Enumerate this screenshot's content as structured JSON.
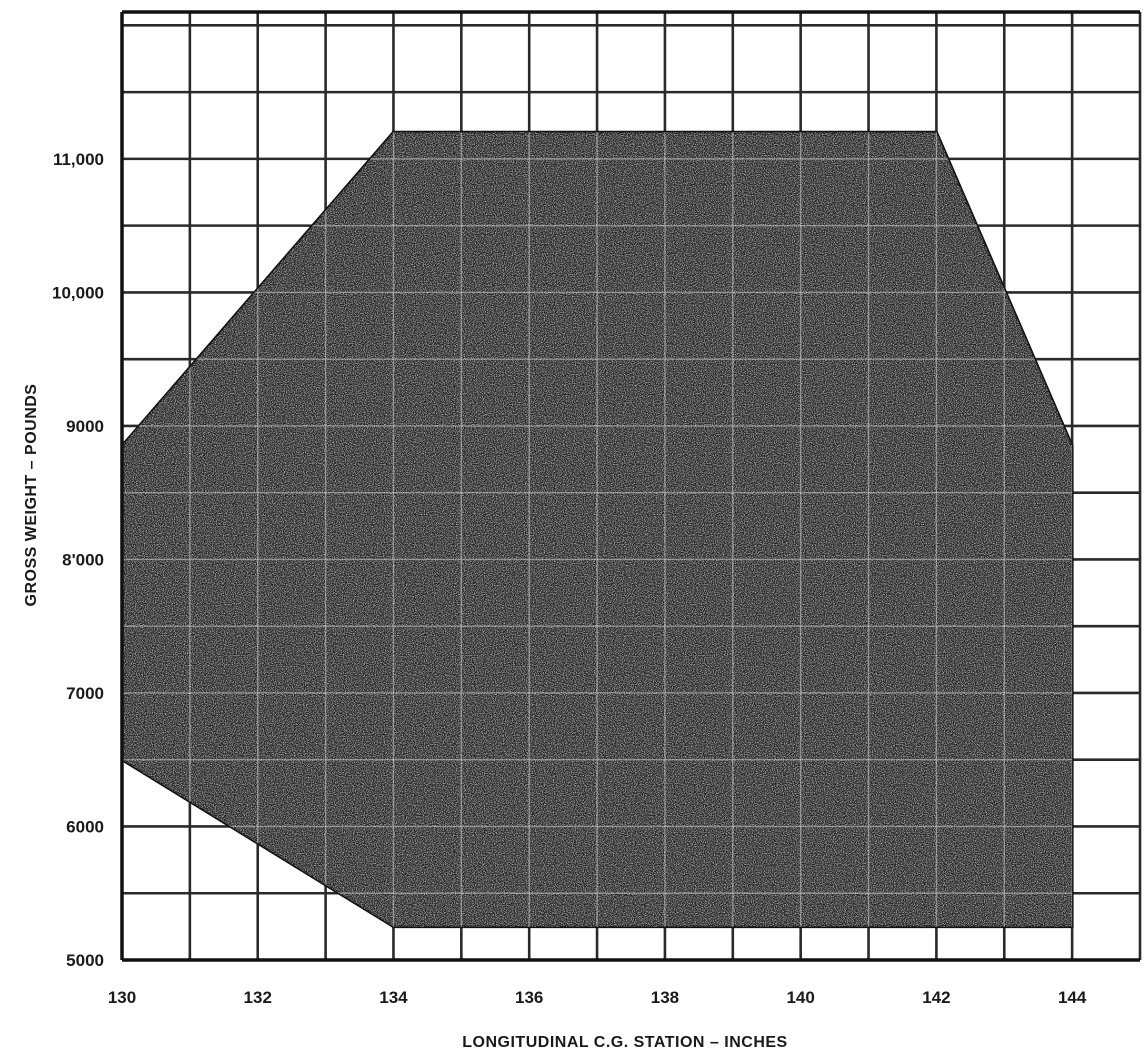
{
  "chart_data": {
    "type": "area",
    "title": "",
    "xlabel": "LONGITUDINAL  C.G. STATION  –  INCHES",
    "ylabel": "GROSS WEIGHT  –  POUNDS",
    "xlim": [
      130,
      145
    ],
    "ylim": [
      5000,
      12100
    ],
    "x_grid_step": 1,
    "y_grid_step": 500,
    "grid": true,
    "x_ticks": [
      {
        "value": 130,
        "label": "130"
      },
      {
        "value": 132,
        "label": "132"
      },
      {
        "value": 134,
        "label": "134"
      },
      {
        "value": 136,
        "label": "136"
      },
      {
        "value": 138,
        "label": "138"
      },
      {
        "value": 140,
        "label": "140"
      },
      {
        "value": 142,
        "label": "142"
      },
      {
        "value": 144,
        "label": "144"
      }
    ],
    "y_ticks": [
      {
        "value": 5000,
        "label": "5000"
      },
      {
        "value": 6000,
        "label": "6000"
      },
      {
        "value": 7000,
        "label": "7000"
      },
      {
        "value": 8000,
        "label": "8'000"
      },
      {
        "value": 9000,
        "label": "9000"
      },
      {
        "value": 10000,
        "label": "10,000"
      },
      {
        "value": 11000,
        "label": "11,000"
      }
    ],
    "envelope": {
      "fill": "#1e1e1e",
      "points": [
        {
          "x": 130,
          "y": 6500
        },
        {
          "x": 130,
          "y": 8850
        },
        {
          "x": 134,
          "y": 11200
        },
        {
          "x": 142,
          "y": 11200
        },
        {
          "x": 144,
          "y": 8850
        },
        {
          "x": 144,
          "y": 5250
        },
        {
          "x": 134,
          "y": 5250
        }
      ]
    },
    "colors": {
      "grid": "#2a2a2a",
      "envelope": "#1e1e1e",
      "envelope_grid": "#bdbdbd",
      "text": "#1a1a1a"
    }
  }
}
